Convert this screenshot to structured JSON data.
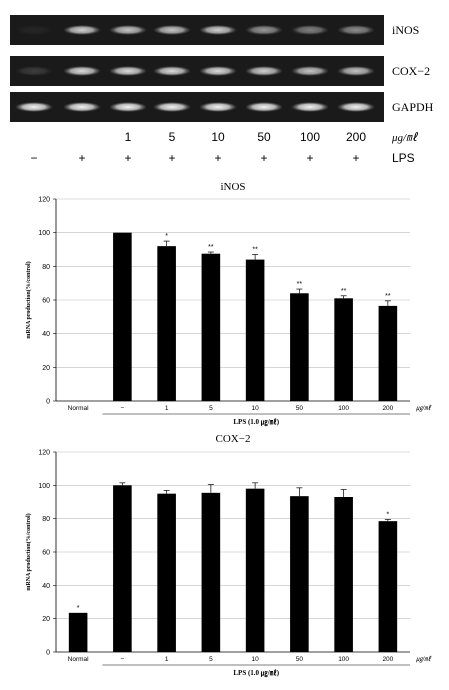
{
  "gel": {
    "rows": [
      {
        "label": "iNOS",
        "intensity": [
          0.05,
          0.8,
          0.75,
          0.75,
          0.8,
          0.55,
          0.45,
          0.5
        ]
      },
      {
        "label": "COX−2",
        "intensity": [
          0.15,
          0.85,
          0.85,
          0.85,
          0.85,
          0.8,
          0.75,
          0.75
        ]
      },
      {
        "label": "GAPDH",
        "intensity": [
          0.95,
          0.95,
          0.95,
          0.95,
          0.95,
          0.95,
          0.95,
          0.95
        ]
      }
    ],
    "concentrations": [
      "",
      "",
      "1",
      "5",
      "10",
      "50",
      "100",
      "200"
    ],
    "conc_unit": "μg/㎖",
    "lps_signs": [
      "−",
      "+",
      "+",
      "+",
      "+",
      "+",
      "+",
      "+"
    ],
    "lps_label": "LPS"
  },
  "chart_data": [
    {
      "type": "bar",
      "title": "iNOS",
      "categories": [
        "Normal",
        "−",
        "1",
        "5",
        "10",
        "50",
        "100",
        "200"
      ],
      "values": [
        0,
        100,
        92,
        87.5,
        84,
        64,
        61,
        56.5
      ],
      "errors": [
        0,
        0,
        3,
        1,
        3,
        2.5,
        1.5,
        3
      ],
      "significance": [
        "",
        "",
        "*",
        "**",
        "**",
        "**",
        "**",
        "**"
      ],
      "ylabel": "mRNA production(%/control)",
      "xlabel": "LPS (1.0 ㎍/㎖)",
      "x_unit": "㎍/㎖",
      "ylim": [
        0,
        120
      ],
      "yticks": [
        "0",
        "20",
        "40",
        "60",
        "80",
        "100",
        "120"
      ],
      "grid": true
    },
    {
      "type": "bar",
      "title": "COX−2",
      "categories": [
        "Normal",
        "−",
        "1",
        "5",
        "10",
        "50",
        "100",
        "200"
      ],
      "values": [
        23.5,
        100,
        95,
        95.5,
        98,
        93.5,
        93,
        78.5
      ],
      "errors": [
        0,
        1.5,
        2,
        5,
        3.5,
        5,
        4.5,
        1
      ],
      "significance": [
        "*",
        "",
        "",
        "",
        "",
        "",
        "",
        "*"
      ],
      "ylabel": "mRNA production(%/control)",
      "xlabel": "LPS (1.0 ㎍/㎖)",
      "x_unit": "㎍/㎖",
      "ylim": [
        0,
        120
      ],
      "yticks": [
        "0",
        "20",
        "40",
        "60",
        "80",
        "100",
        "120"
      ],
      "grid": true
    }
  ]
}
